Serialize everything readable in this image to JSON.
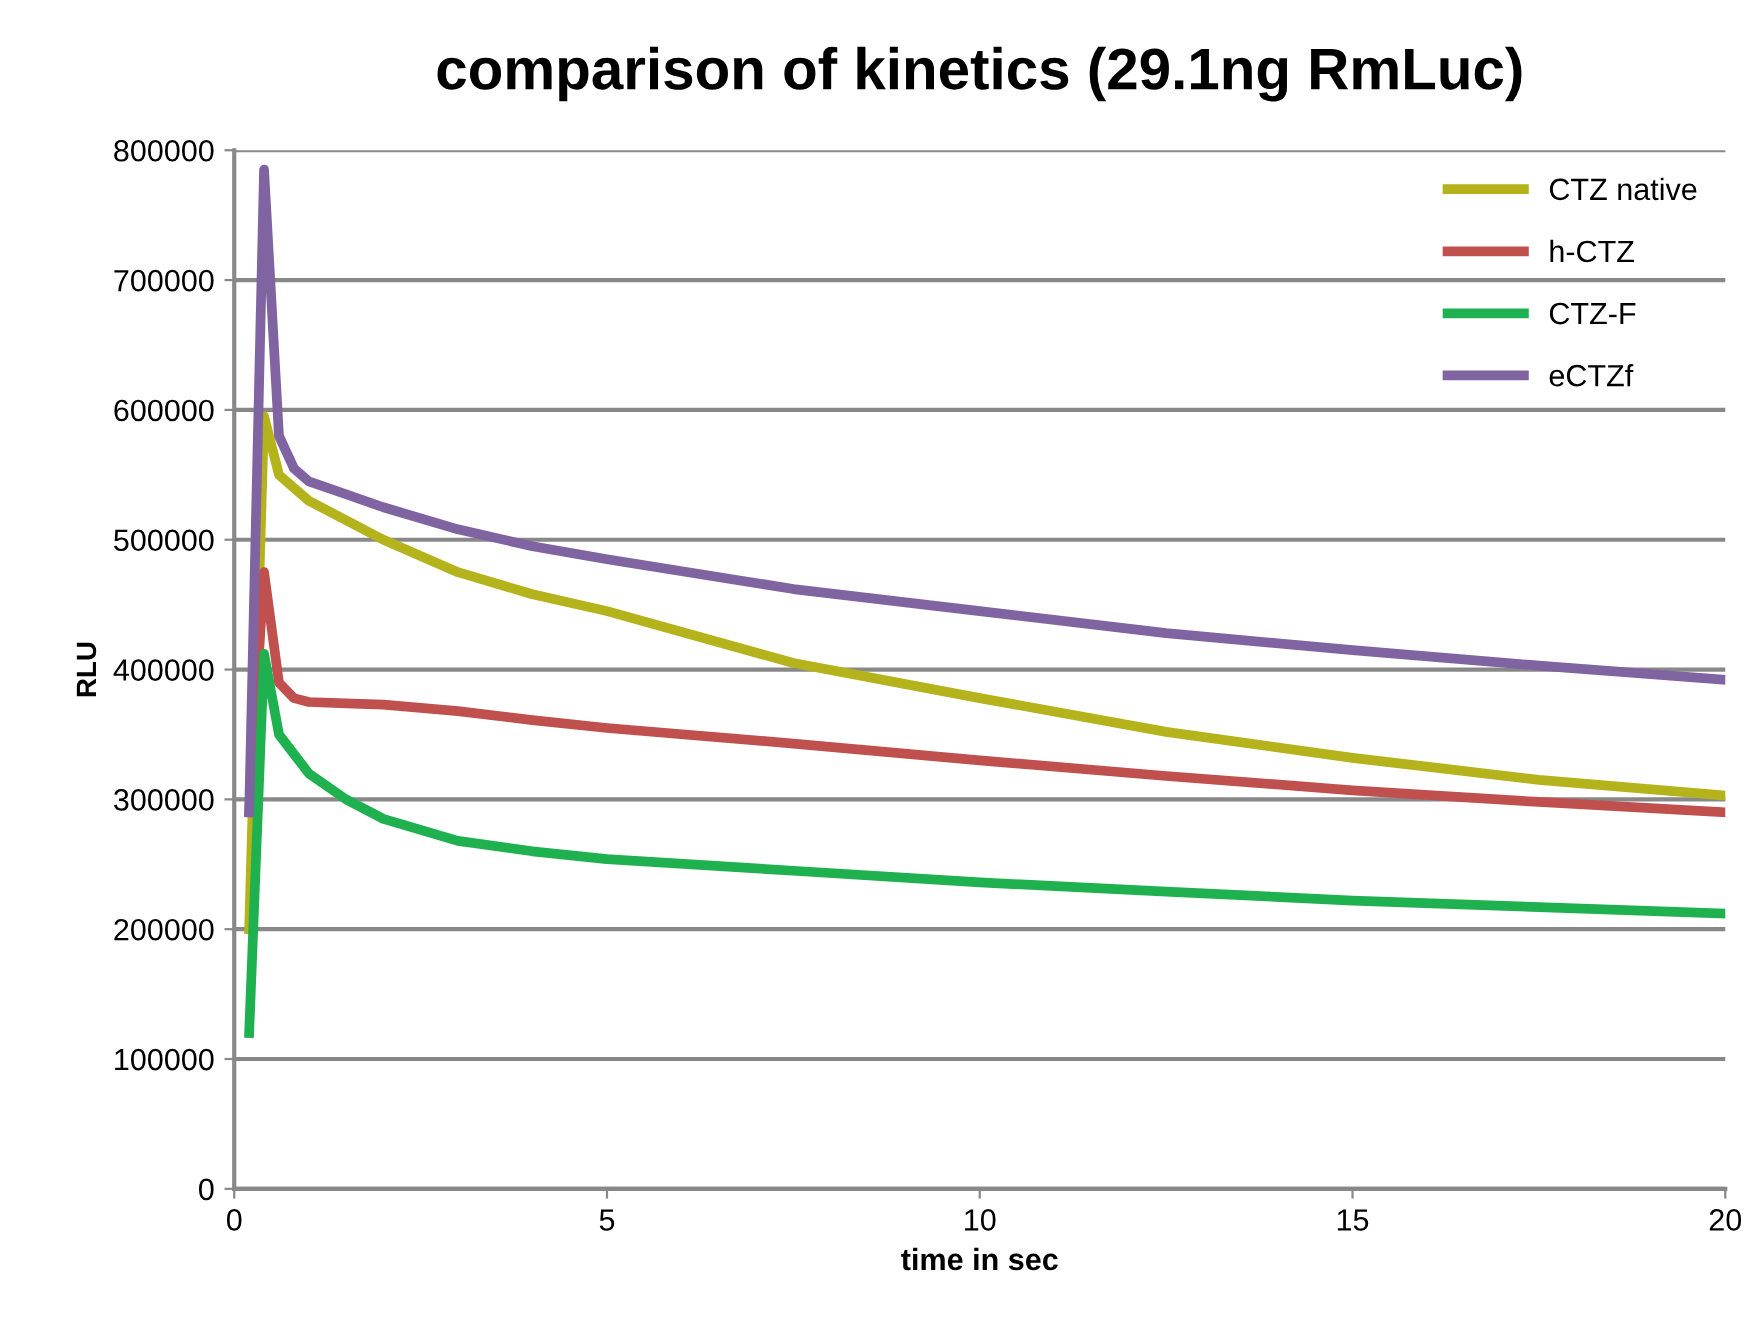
{
  "chart_data": {
    "type": "line",
    "title": "comparison of kinetics (29.1ng RmLuc)",
    "xlabel": "time in sec",
    "ylabel": "RLU",
    "xlim": [
      0,
      20
    ],
    "xticks": [
      0,
      5,
      10,
      15,
      20
    ],
    "ylim": [
      0,
      800000
    ],
    "yticks": [
      0,
      100000,
      200000,
      300000,
      400000,
      500000,
      600000,
      700000,
      800000
    ],
    "grid": "y",
    "legend": "top right",
    "marker": "none",
    "line_style": "solid",
    "x": [
      0.2,
      0.4,
      0.6,
      0.8,
      1,
      1.5,
      2,
      3,
      4,
      5,
      7.5,
      10,
      12.5,
      15,
      17.5,
      20
    ],
    "series": [
      {
        "name": "CTZ native",
        "color": "#b5b31c",
        "values": [
          200000,
          595000,
          550000,
          540000,
          530000,
          515000,
          500000,
          475000,
          458000,
          445000,
          405000,
          378000,
          352000,
          332000,
          315000,
          303000
        ]
      },
      {
        "name": "h-CTZ",
        "color": "#c0504d",
        "values": [
          290000,
          475000,
          390000,
          378000,
          375000,
          374000,
          373000,
          368000,
          361000,
          355000,
          343000,
          330000,
          318000,
          307000,
          298000,
          290000
        ]
      },
      {
        "name": "CTZ-F",
        "color": "#1fb04f",
        "values": [
          120000,
          412000,
          350000,
          335000,
          320000,
          300000,
          285000,
          268000,
          260000,
          254000,
          245000,
          236000,
          229000,
          222000,
          217000,
          212000
        ]
      },
      {
        "name": "eCTZf",
        "color": "#8064a2",
        "values": [
          290000,
          785000,
          580000,
          555000,
          545000,
          535000,
          525000,
          508000,
          495000,
          485000,
          462000,
          445000,
          428000,
          415000,
          403000,
          392000
        ]
      }
    ]
  }
}
